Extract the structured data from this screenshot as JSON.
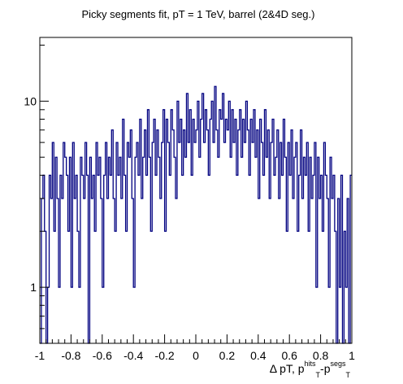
{
  "chart_data": {
    "type": "histogram",
    "title": "Picky segments fit, pT = 1 TeV, barrel (2&4D seg.)",
    "xlabel": {
      "prefix": "Δ pT, p",
      "sup1": "hits",
      "sub1": "T",
      "mid": "-p",
      "sup2": "segs",
      "sub2": "T"
    },
    "ylabel": "",
    "y_scale": "log",
    "xlim": [
      -1,
      1
    ],
    "ylim": [
      0.5,
      22
    ],
    "x_ticks": [
      {
        "value": -1,
        "label": "-1"
      },
      {
        "value": -0.8,
        "label": "-0.8"
      },
      {
        "value": -0.6,
        "label": "-0.6"
      },
      {
        "value": -0.4,
        "label": "-0.4"
      },
      {
        "value": -0.2,
        "label": "-0.2"
      },
      {
        "value": 0,
        "label": "0"
      },
      {
        "value": 0.2,
        "label": "0.2"
      },
      {
        "value": 0.4,
        "label": "0.4"
      },
      {
        "value": 0.6,
        "label": "0.6"
      },
      {
        "value": 0.8,
        "label": "0.8"
      },
      {
        "value": 1,
        "label": "1"
      }
    ],
    "y_ticks": [
      {
        "value": 1,
        "label": "1"
      },
      {
        "value": 10,
        "label": "10"
      }
    ],
    "color": "#000080",
    "bins": 200,
    "counts": [
      0,
      3,
      4,
      2,
      0,
      1,
      4,
      3,
      6,
      2,
      5,
      3,
      1,
      4,
      3,
      6,
      5,
      4,
      2,
      5,
      1,
      6,
      3,
      4,
      2,
      1,
      5,
      4,
      3,
      6,
      4,
      0,
      5,
      3,
      4,
      2,
      6,
      4,
      5,
      3,
      1,
      4,
      6,
      3,
      5,
      4,
      7,
      3,
      2,
      6,
      4,
      5,
      3,
      8,
      4,
      2,
      6,
      5,
      7,
      3,
      1,
      5,
      6,
      4,
      8,
      3,
      5,
      7,
      4,
      9,
      5,
      2,
      6,
      8,
      4,
      7,
      5,
      3,
      6,
      9,
      2,
      8,
      6,
      4,
      9,
      7,
      5,
      3,
      10,
      6,
      8,
      4,
      7,
      5,
      11,
      6,
      9,
      4,
      8,
      6,
      7,
      10,
      5,
      8,
      11,
      6,
      9,
      7,
      4,
      8,
      10,
      6,
      12,
      7,
      5,
      9,
      8,
      11,
      6,
      8,
      7,
      10,
      5,
      9,
      6,
      8,
      4,
      7,
      9,
      5,
      8,
      6,
      10,
      7,
      4,
      8,
      6,
      9,
      5,
      7,
      3,
      8,
      6,
      4,
      9,
      5,
      7,
      3,
      6,
      8,
      4,
      5,
      7,
      3,
      6,
      4,
      8,
      5,
      2,
      6,
      4,
      7,
      3,
      5,
      6,
      2,
      4,
      7,
      3,
      5,
      4,
      6,
      2,
      5,
      3,
      4,
      6,
      1,
      5,
      3,
      4,
      2,
      6,
      4,
      3,
      1,
      5,
      3,
      4,
      2,
      0,
      3,
      1,
      4,
      0,
      2,
      1,
      3,
      0,
      4
    ]
  }
}
